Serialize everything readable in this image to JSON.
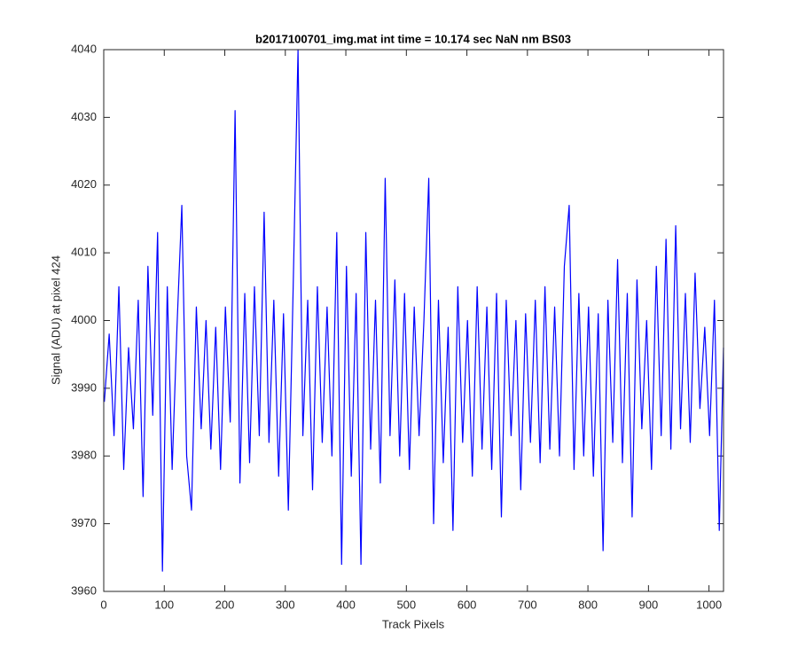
{
  "chart_data": {
    "type": "line",
    "title": "b2017100701_img.mat int time = 10.174 sec  NaN nm BS03",
    "x_label": "Track Pixels",
    "y_label": "Signal (ADU) at pixel 424",
    "color": "#0000ff",
    "x": [
      1,
      9,
      17,
      25,
      33,
      41,
      49,
      57,
      65,
      73,
      81,
      89,
      97,
      105,
      113,
      121,
      129,
      137,
      145,
      153,
      161,
      169,
      177,
      185,
      193,
      201,
      209,
      217,
      225,
      233,
      241,
      249,
      257,
      265,
      273,
      281,
      289,
      297,
      305,
      313,
      321,
      329,
      337,
      345,
      353,
      361,
      369,
      377,
      385,
      393,
      401,
      409,
      417,
      425,
      433,
      441,
      449,
      457,
      465,
      473,
      481,
      489,
      497,
      505,
      513,
      521,
      529,
      537,
      545,
      553,
      561,
      569,
      577,
      585,
      593,
      601,
      609,
      617,
      625,
      633,
      641,
      649,
      657,
      665,
      673,
      681,
      689,
      697,
      705,
      713,
      721,
      729,
      737,
      745,
      753,
      761,
      769,
      777,
      785,
      793,
      801,
      809,
      817,
      825,
      833,
      841,
      849,
      857,
      865,
      873,
      881,
      889,
      897,
      905,
      913,
      921,
      929,
      937,
      945,
      953,
      961,
      969,
      977,
      985,
      993,
      1001,
      1009,
      1017,
      1024
    ],
    "values": [
      3988,
      3998,
      3983,
      4005,
      3978,
      3996,
      3984,
      4003,
      3974,
      4008,
      3986,
      4013,
      3963,
      4005,
      3978,
      3999,
      4017,
      3980,
      3972,
      4002,
      3984,
      4000,
      3981,
      3999,
      3978,
      4002,
      3985,
      4031,
      3976,
      4004,
      3979,
      4005,
      3983,
      4016,
      3982,
      4003,
      3977,
      4001,
      3972,
      4005,
      4040,
      3983,
      4003,
      3975,
      4005,
      3982,
      4002,
      3980,
      4013,
      3964,
      4008,
      3977,
      4004,
      3964,
      4013,
      3981,
      4003,
      3976,
      4021,
      3983,
      4006,
      3980,
      4004,
      3978,
      4002,
      3983,
      4000,
      4021,
      3970,
      4003,
      3979,
      3999,
      3969,
      4005,
      3982,
      4000,
      3977,
      4005,
      3981,
      4002,
      3978,
      4004,
      3971,
      4003,
      3983,
      4000,
      3975,
      4001,
      3982,
      4003,
      3979,
      4005,
      3981,
      4002,
      3980,
      4008,
      4017,
      3978,
      4004,
      3980,
      4002,
      3977,
      4001,
      3966,
      4003,
      3982,
      4009,
      3979,
      4004,
      3971,
      4006,
      3984,
      4000,
      3978,
      4008,
      3983,
      4012,
      3981,
      4014,
      3984,
      4004,
      3982,
      4007,
      3987,
      3999,
      3983,
      4003,
      3969,
      3996
    ],
    "xlim": [
      0,
      1024
    ],
    "ylim": [
      3960,
      4040
    ],
    "xticks": [
      0,
      100,
      200,
      300,
      400,
      500,
      600,
      700,
      800,
      900,
      1000
    ],
    "yticks": [
      3960,
      3970,
      3980,
      3990,
      4000,
      4010,
      4020,
      4030,
      4040
    ],
    "grid": false
  }
}
